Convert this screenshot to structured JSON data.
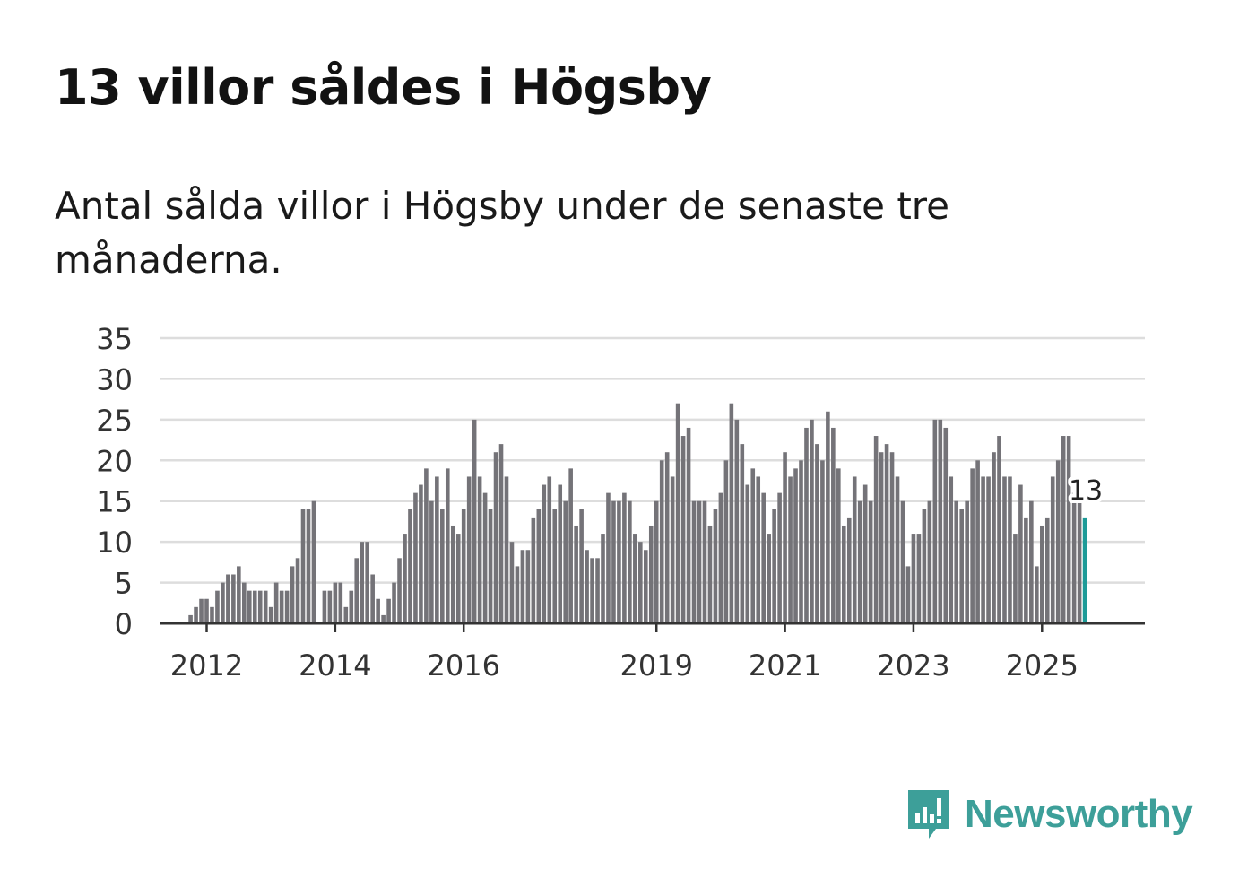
{
  "header": {
    "title": "13 villor såldes i Högsby",
    "subtitle": "Antal sålda villor i Högsby under de senaste tre månaderna."
  },
  "brand": {
    "name": "Newsworthy",
    "icon": "newsworthy-logo-icon",
    "color": "#3d9f99"
  },
  "colors": {
    "bar": "#747378",
    "highlight": "#1d9a97",
    "grid": "#dddddd",
    "axis": "#333333"
  },
  "chart_data": {
    "type": "bar",
    "title": "",
    "xlabel": "",
    "ylabel": "",
    "x_start": "2011-10",
    "x_end": "2025-09",
    "ylim": [
      0,
      35
    ],
    "yticks": [
      0,
      5,
      10,
      15,
      20,
      25,
      30,
      35
    ],
    "xticks": [
      {
        "label": "2012",
        "date": "2012-01"
      },
      {
        "label": "2014",
        "date": "2014-01"
      },
      {
        "label": "2016",
        "date": "2016-01"
      },
      {
        "label": "2019",
        "date": "2019-01"
      },
      {
        "label": "2021",
        "date": "2021-01"
      },
      {
        "label": "2023",
        "date": "2023-01"
      },
      {
        "label": "2025",
        "date": "2025-01"
      }
    ],
    "grid": true,
    "highlight": {
      "date": "2025-09",
      "value": 13,
      "label": "13"
    },
    "series": [
      {
        "values": [
          1,
          2,
          3,
          3,
          2,
          4,
          5,
          6,
          6,
          7,
          5,
          4,
          4,
          4,
          4,
          2,
          5,
          4,
          4,
          7,
          8,
          14,
          14,
          15,
          0,
          4,
          4,
          5,
          5,
          2,
          4,
          8,
          10,
          10,
          6,
          3,
          1,
          3,
          5,
          8,
          11,
          14,
          16,
          17,
          19,
          15,
          18,
          14,
          19,
          12,
          11,
          14,
          18,
          25,
          18,
          16,
          14,
          21,
          22,
          18,
          10,
          7,
          9,
          9,
          13,
          14,
          17,
          18,
          14,
          17,
          15,
          19,
          12,
          14,
          9,
          8,
          8,
          11,
          16,
          15,
          15,
          16,
          15,
          11,
          10,
          9,
          12,
          15,
          20,
          21,
          18,
          27,
          23,
          24,
          15,
          15,
          15,
          12,
          14,
          16,
          20,
          27,
          25,
          22,
          17,
          19,
          18,
          16,
          11,
          14,
          16,
          21,
          18,
          19,
          20,
          24,
          25,
          22,
          20,
          26,
          24,
          19,
          12,
          13,
          18,
          15,
          17,
          15,
          23,
          21,
          22,
          21,
          18,
          15,
          7,
          11,
          11,
          14,
          15,
          25,
          25,
          24,
          18,
          15,
          14,
          15,
          19,
          20,
          18,
          18,
          21,
          23,
          18,
          18,
          11,
          17,
          13,
          15,
          7,
          12,
          13,
          18,
          20,
          23,
          23,
          16,
          15,
          13
        ]
      }
    ]
  }
}
